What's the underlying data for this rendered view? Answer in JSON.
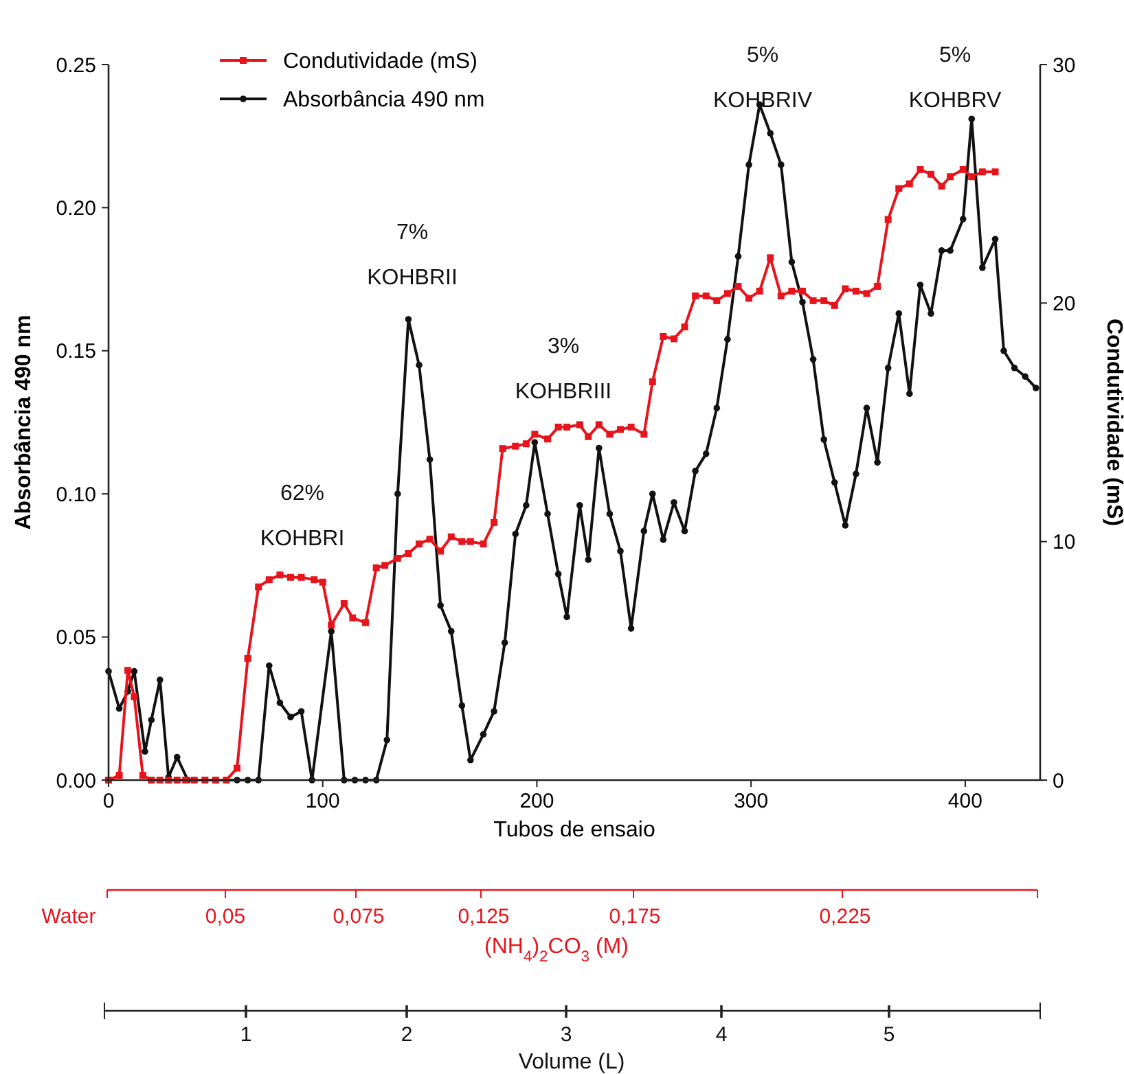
{
  "chart_data": {
    "type": "line",
    "xlabel": "Tubos de ensaio",
    "ylabel": "Absorbância 490 nm",
    "y2label": "Condutividade (mS)",
    "xlim": [
      0,
      435
    ],
    "xticks": [
      0,
      100,
      200,
      300,
      400
    ],
    "ylim": [
      0,
      0.25
    ],
    "yticks": [
      {
        "value": 0,
        "label": "0.00"
      },
      {
        "value": 0.05,
        "label": "0.05"
      },
      {
        "value": 0.1,
        "label": "0.10"
      },
      {
        "value": 0.15,
        "label": "0.15"
      },
      {
        "value": 0.2,
        "label": "0.20"
      },
      {
        "value": 0.25,
        "label": "0.25"
      }
    ],
    "y2lim": [
      0,
      30
    ],
    "y2ticks": [
      0,
      10,
      20,
      30
    ],
    "grid": false,
    "legend": "top left",
    "series": [
      {
        "name": "Condutividade (mS)",
        "color": "#e8141c",
        "axis": "y2",
        "marker": "square",
        "x": [
          0,
          5,
          9,
          12,
          16,
          20,
          24,
          28,
          32,
          36,
          40,
          45,
          50,
          55,
          60,
          65,
          70,
          75,
          80,
          85,
          90,
          96,
          100,
          104,
          110,
          114,
          120,
          125,
          129,
          135,
          140,
          145,
          150,
          155,
          160,
          165,
          169,
          175,
          180,
          184,
          190,
          195,
          199,
          205,
          210,
          214,
          220,
          224,
          229,
          234,
          239,
          244,
          250,
          254,
          259,
          264,
          269,
          274,
          279,
          284,
          289,
          294,
          299,
          304,
          309,
          314,
          319,
          324,
          329,
          334,
          339,
          344,
          349,
          354,
          359,
          364,
          369,
          374,
          379,
          384,
          389,
          393,
          399,
          403,
          408,
          414
        ],
        "values": [
          0,
          0.2,
          4.6,
          3.5,
          0.2,
          0,
          0,
          0,
          0,
          0,
          0,
          0,
          0,
          0,
          0.5,
          5.1,
          8.1,
          8.4,
          8.6,
          8.5,
          8.5,
          8.4,
          8.3,
          6.5,
          7.4,
          6.8,
          6.6,
          8.9,
          9.0,
          9.3,
          9.5,
          9.9,
          10.1,
          9.6,
          10.2,
          10.0,
          10.0,
          9.9,
          10.8,
          13.9,
          14.0,
          14.1,
          14.5,
          14.3,
          14.8,
          14.8,
          14.9,
          14.4,
          14.9,
          14.5,
          14.7,
          14.8,
          14.5,
          16.7,
          18.6,
          18.5,
          19.0,
          20.3,
          20.3,
          20.1,
          20.4,
          20.7,
          20.2,
          20.5,
          21.9,
          20.3,
          20.5,
          20.5,
          20.1,
          20.1,
          19.9,
          20.6,
          20.5,
          20.4,
          20.7,
          23.5,
          24.8,
          25.0,
          25.6,
          25.4,
          24.9,
          25.3,
          25.6,
          25.3,
          25.5,
          25.5
        ]
      },
      {
        "name": "Absorbância 490 nm",
        "color": "#111111",
        "axis": "y",
        "marker": "circle",
        "x": [
          0,
          5,
          9,
          12,
          17,
          20,
          24,
          28,
          32,
          37,
          60,
          65,
          70,
          75,
          80,
          85,
          90,
          95,
          104,
          110,
          115,
          120,
          125,
          130,
          135,
          140,
          145,
          150,
          155,
          160,
          165,
          169,
          175,
          180,
          185,
          190,
          195,
          199,
          205,
          210,
          214,
          220,
          224,
          229,
          234,
          239,
          244,
          250,
          254,
          259,
          264,
          269,
          274,
          279,
          284,
          289,
          294,
          299,
          304,
          309,
          314,
          319,
          324,
          329,
          334,
          339,
          344,
          349,
          354,
          359,
          364,
          369,
          374,
          379,
          384,
          389,
          393,
          399,
          403,
          408,
          414,
          418,
          423,
          428,
          433
        ],
        "values": [
          0.038,
          0.025,
          0.031,
          0.038,
          0.01,
          0.021,
          0.035,
          0.001,
          0.008,
          0,
          0,
          0,
          0,
          0.04,
          0.027,
          0.022,
          0.024,
          0,
          0.052,
          0,
          0,
          0,
          0,
          0.014,
          0.1,
          0.161,
          0.145,
          0.112,
          0.061,
          0.052,
          0.026,
          0.007,
          0.016,
          0.024,
          0.048,
          0.086,
          0.096,
          0.118,
          0.093,
          0.072,
          0.057,
          0.096,
          0.077,
          0.116,
          0.093,
          0.08,
          0.053,
          0.087,
          0.1,
          0.084,
          0.097,
          0.087,
          0.108,
          0.114,
          0.13,
          0.154,
          0.183,
          0.215,
          0.236,
          0.226,
          0.215,
          0.181,
          0.167,
          0.147,
          0.119,
          0.104,
          0.089,
          0.107,
          0.13,
          0.111,
          0.144,
          0.163,
          0.135,
          0.173,
          0.163,
          0.185,
          0.185,
          0.196,
          0.231,
          0.179,
          0.189,
          0.15,
          0.144,
          0.141,
          0.137
        ]
      }
    ],
    "annotations": [
      "62%\nKOHBRI",
      "7%\nKOHBRII",
      "3%\nKOHBRIII",
      "5%\nKOHBRIV",
      "5%\nKOHBRV",
      "Water",
      "0,05",
      "0,075",
      "0,125",
      "0,175",
      "0,225",
      "(NH$_{4}$)$_{2}$CO$_{3}$ (M)",
      "1",
      "2",
      "3",
      "4",
      "5",
      "Volume (L)"
    ]
  }
}
